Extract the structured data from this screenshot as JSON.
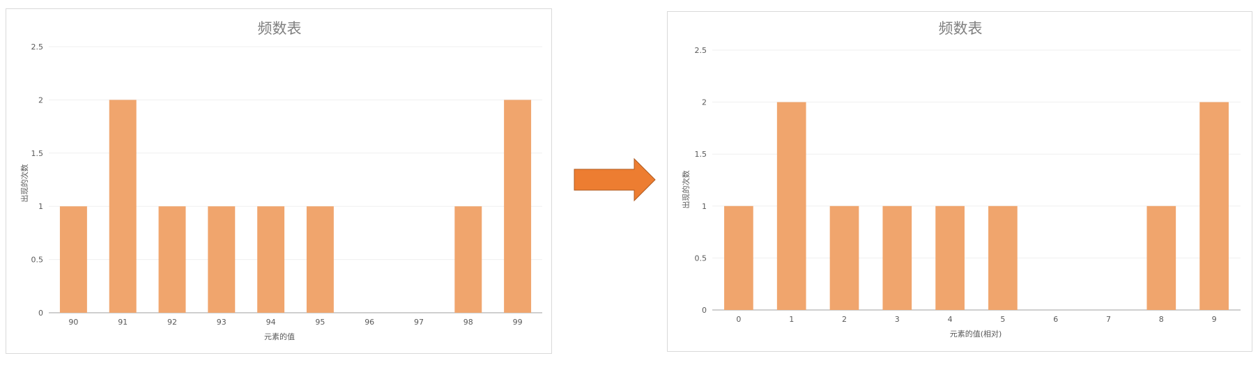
{
  "charts": [
    {
      "chart_data": {
        "type": "bar",
        "title": "频数表",
        "xlabel": "元素的值",
        "ylabel": "出现的次数",
        "categories": [
          "90",
          "91",
          "92",
          "93",
          "94",
          "95",
          "96",
          "97",
          "98",
          "99"
        ],
        "values": [
          1,
          2,
          1,
          1,
          1,
          1,
          0,
          0,
          1,
          2
        ],
        "ylim": [
          0,
          2.5
        ],
        "yticks": [
          "0",
          "0.5",
          "1",
          "1.5",
          "2",
          "2.5"
        ],
        "grid": true,
        "legend": "none",
        "bar_color": "#f0a56d"
      }
    },
    {
      "chart_data": {
        "type": "bar",
        "title": "频数表",
        "xlabel": "元素的值(相对)",
        "ylabel": "出现的次数",
        "categories": [
          "0",
          "1",
          "2",
          "3",
          "4",
          "5",
          "6",
          "7",
          "8",
          "9"
        ],
        "values": [
          1,
          2,
          1,
          1,
          1,
          1,
          0,
          0,
          1,
          2
        ],
        "ylim": [
          0,
          2.5
        ],
        "yticks": [
          "0",
          "0.5",
          "1",
          "1.5",
          "2",
          "2.5"
        ],
        "grid": true,
        "legend": "none",
        "bar_color": "#f0a56d"
      }
    }
  ],
  "arrow": {
    "icon": "right-arrow-icon",
    "fill": "#ed7d31",
    "stroke": "#ae5a21"
  }
}
